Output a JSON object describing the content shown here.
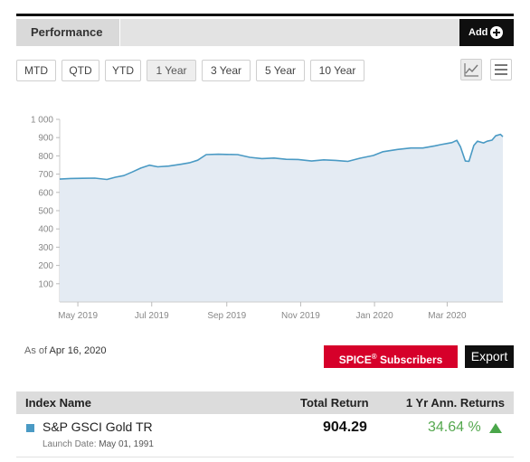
{
  "header": {
    "tab_label": "Performance",
    "add_label": "Add",
    "add_icon": "plus-circle-icon"
  },
  "periods": [
    {
      "label": "MTD",
      "active": false
    },
    {
      "label": "QTD",
      "active": false
    },
    {
      "label": "YTD",
      "active": false
    },
    {
      "label": "1 Year",
      "active": true
    },
    {
      "label": "3 Year",
      "active": false
    },
    {
      "label": "5 Year",
      "active": false
    },
    {
      "label": "10 Year",
      "active": false
    }
  ],
  "view_toggles": {
    "line_chart_icon": "line-chart-icon",
    "menu_icon": "hamburger-menu-icon",
    "active": "line-chart-icon"
  },
  "chart_data": {
    "type": "area",
    "title": "",
    "xlabel": "",
    "ylabel": "",
    "ylim": [
      0,
      1000
    ],
    "yticks": [
      100,
      200,
      300,
      400,
      500,
      600,
      700,
      800,
      900,
      1000
    ],
    "ytick_labels": [
      "100",
      "200",
      "300",
      "400",
      "500",
      "600",
      "700",
      "800",
      "900",
      "1 000"
    ],
    "xticks": [
      "2019-05-01",
      "2019-07-01",
      "2019-09-01",
      "2019-11-01",
      "2020-01-01",
      "2020-03-01"
    ],
    "xtick_labels": [
      "May 2019",
      "Jul 2019",
      "Sep 2019",
      "Nov 2019",
      "Jan 2020",
      "Mar 2020"
    ],
    "xlim": [
      "2019-04-16",
      "2020-04-16"
    ],
    "grid": false,
    "line_color": "#4a9ac4",
    "fill_color": "#e4ebf3",
    "series": [
      {
        "x": [
          "2019-04-16",
          "2019-04-25",
          "2019-05-05",
          "2019-05-15",
          "2019-05-25",
          "2019-06-01",
          "2019-06-08",
          "2019-06-15",
          "2019-06-22",
          "2019-06-29",
          "2019-07-06",
          "2019-07-15",
          "2019-07-25",
          "2019-08-01",
          "2019-08-08",
          "2019-08-15",
          "2019-08-25",
          "2019-09-01",
          "2019-09-10",
          "2019-09-20",
          "2019-09-30",
          "2019-10-10",
          "2019-10-20",
          "2019-10-30",
          "2019-11-10",
          "2019-11-20",
          "2019-11-30",
          "2019-12-10",
          "2019-12-20",
          "2019-12-31",
          "2020-01-08",
          "2020-01-20",
          "2020-01-31",
          "2020-02-10",
          "2020-02-20",
          "2020-02-25",
          "2020-03-01",
          "2020-03-05",
          "2020-03-09",
          "2020-03-12",
          "2020-03-16",
          "2020-03-19",
          "2020-03-23",
          "2020-03-26",
          "2020-03-31",
          "2020-04-03",
          "2020-04-07",
          "2020-04-10",
          "2020-04-14",
          "2020-04-16"
        ],
        "y": [
          673,
          676,
          677,
          678,
          671,
          683,
          692,
          712,
          733,
          749,
          740,
          744,
          754,
          762,
          776,
          807,
          809,
          808,
          807,
          792,
          785,
          788,
          781,
          780,
          772,
          778,
          775,
          770,
          787,
          802,
          823,
          835,
          843,
          843,
          855,
          862,
          868,
          873,
          885,
          850,
          772,
          770,
          857,
          880,
          871,
          880,
          886,
          910,
          918,
          905
        ]
      }
    ]
  },
  "as_of": {
    "label": "As of",
    "date": "Apr 16, 2020"
  },
  "buttons": {
    "spice_label": "SPICE",
    "spice_reg": "®",
    "spice_suffix": " Subscribers",
    "export_label": "Export"
  },
  "table": {
    "headers": {
      "name": "Index Name",
      "total": "Total Return",
      "ann": "1 Yr Ann. Returns"
    },
    "rows": [
      {
        "name": "S&P GSCI Gold TR",
        "launch_label": "Launch Date:",
        "launch_date": "May 01, 1991",
        "total_return": "904.29",
        "ann_return": "34.64 %",
        "trend_icon": "up-arrow-icon"
      }
    ],
    "swatch_color": "#4a9ac4"
  }
}
